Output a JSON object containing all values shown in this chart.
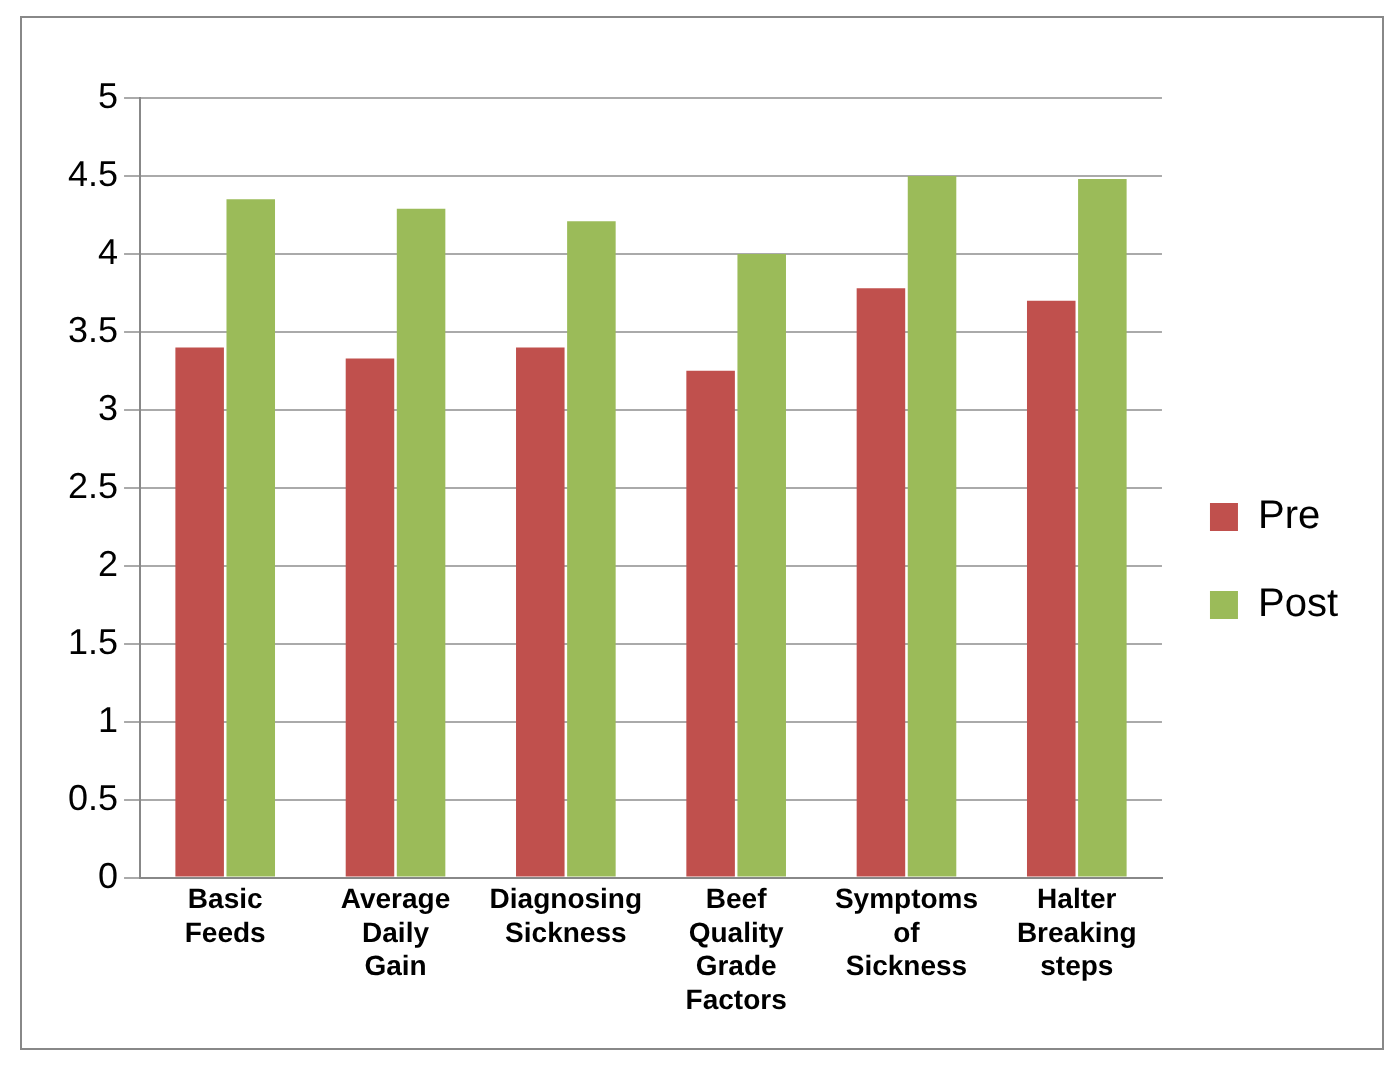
{
  "chart_data": {
    "type": "bar",
    "categories": [
      "Basic Feeds",
      "Average Daily Gain",
      "Diagnosing Sickness",
      "Beef Quality Grade Factors",
      "Symptoms of Sickness",
      "Halter Breaking steps"
    ],
    "series": [
      {
        "name": "Pre",
        "color": "#c0504d",
        "values": [
          3.4,
          3.33,
          3.4,
          3.25,
          3.78,
          3.7
        ]
      },
      {
        "name": "Post",
        "color": "#9bbb59",
        "values": [
          4.35,
          4.29,
          4.21,
          4.0,
          4.5,
          4.48
        ]
      }
    ],
    "ylim": [
      0,
      5
    ],
    "yticks": [
      0,
      0.5,
      1,
      1.5,
      2,
      2.5,
      3,
      3.5,
      4,
      4.5,
      5
    ],
    "grid": "y",
    "legend": "right"
  }
}
